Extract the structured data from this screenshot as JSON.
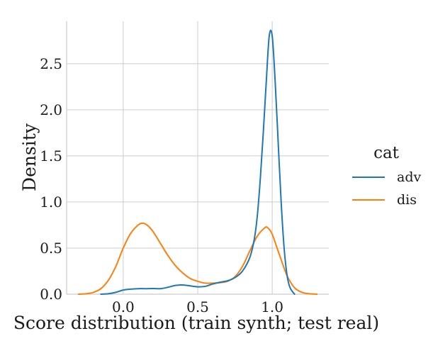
{
  "chart_data": {
    "type": "line",
    "xlabel": "Score distribution (train synth; test real)",
    "ylabel": "Density",
    "xlim": [
      -0.38,
      1.38
    ],
    "ylim": [
      0,
      2.96
    ],
    "xticks": [
      0.0,
      0.5,
      1.0
    ],
    "xtick_labels": [
      "0.0",
      "0.5",
      "1.0"
    ],
    "yticks": [
      0.0,
      0.5,
      1.0,
      1.5,
      2.0,
      2.5
    ],
    "ytick_labels": [
      "0.0",
      "0.5",
      "1.0",
      "1.5",
      "2.0",
      "2.5"
    ],
    "grid": true,
    "legend": {
      "title": "cat",
      "placement": "right",
      "entries": [
        {
          "label": "adv",
          "color": "#1f77b4"
        },
        {
          "label": "dis",
          "color": "#ff7f0e"
        }
      ]
    },
    "series": [
      {
        "name": "adv",
        "color": "#1f77b4",
        "x": [
          -0.15,
          -0.1,
          -0.05,
          0.0,
          0.05,
          0.1,
          0.15,
          0.2,
          0.25,
          0.3,
          0.35,
          0.4,
          0.45,
          0.5,
          0.55,
          0.6,
          0.65,
          0.7,
          0.75,
          0.8,
          0.85,
          0.88,
          0.9,
          0.92,
          0.94,
          0.96,
          0.98,
          1.0,
          1.02,
          1.04,
          1.06,
          1.08,
          1.1,
          1.12,
          1.15
        ],
        "y": [
          0.0,
          0.005,
          0.02,
          0.045,
          0.055,
          0.06,
          0.06,
          0.062,
          0.06,
          0.075,
          0.095,
          0.1,
          0.09,
          0.08,
          0.085,
          0.11,
          0.13,
          0.145,
          0.18,
          0.25,
          0.4,
          0.6,
          0.85,
          1.25,
          1.75,
          2.3,
          2.8,
          2.8,
          2.3,
          1.65,
          1.0,
          0.5,
          0.2,
          0.07,
          0.0
        ]
      },
      {
        "name": "dis",
        "color": "#ff7f0e",
        "x": [
          -0.3,
          -0.25,
          -0.2,
          -0.15,
          -0.1,
          -0.05,
          0.0,
          0.05,
          0.1,
          0.13,
          0.16,
          0.2,
          0.25,
          0.3,
          0.35,
          0.4,
          0.45,
          0.5,
          0.55,
          0.6,
          0.65,
          0.7,
          0.75,
          0.8,
          0.85,
          0.9,
          0.95,
          0.97,
          1.0,
          1.05,
          1.1,
          1.15,
          1.2,
          1.25,
          1.3
        ],
        "y": [
          0.0,
          0.005,
          0.02,
          0.06,
          0.15,
          0.3,
          0.5,
          0.66,
          0.75,
          0.77,
          0.75,
          0.68,
          0.55,
          0.42,
          0.31,
          0.23,
          0.17,
          0.14,
          0.12,
          0.12,
          0.125,
          0.14,
          0.19,
          0.3,
          0.47,
          0.63,
          0.72,
          0.72,
          0.65,
          0.42,
          0.2,
          0.07,
          0.02,
          0.005,
          0.0
        ]
      }
    ]
  }
}
